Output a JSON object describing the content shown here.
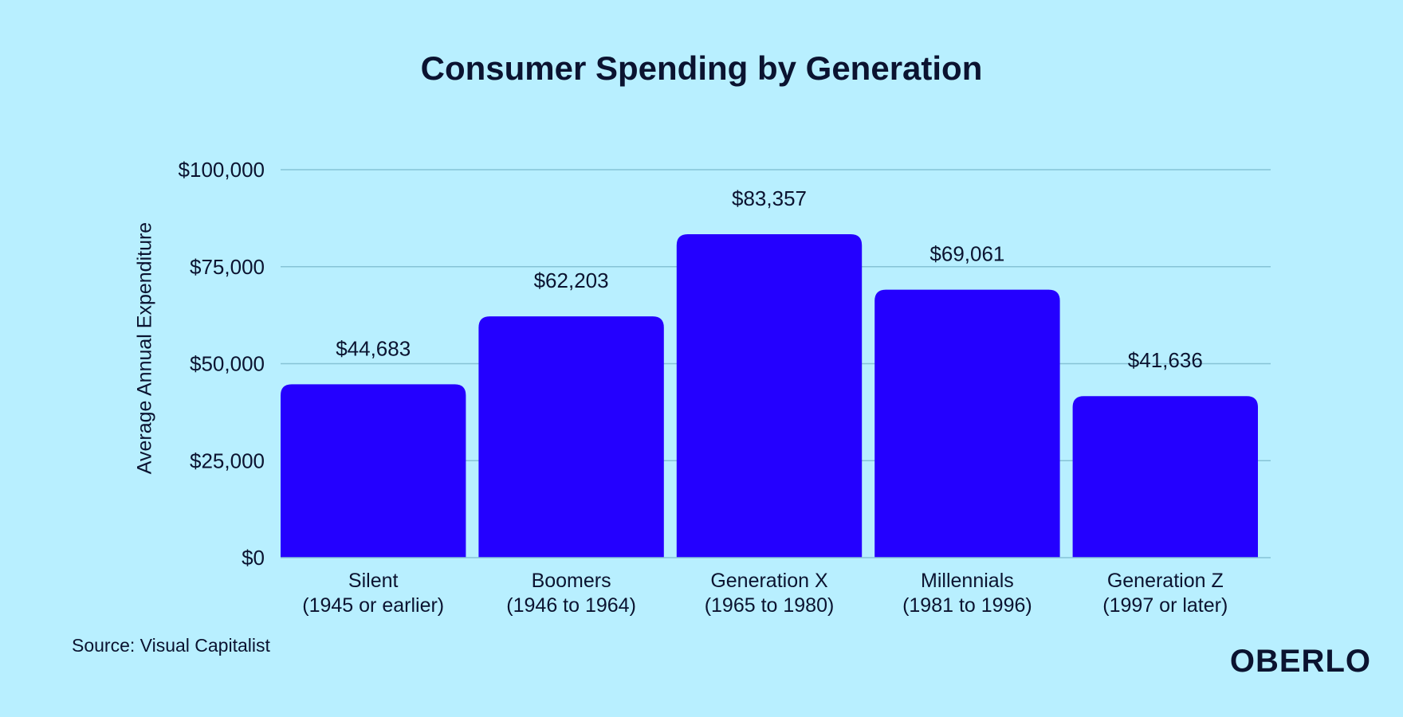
{
  "chart_data": {
    "type": "bar",
    "title": "Consumer Spending by Generation",
    "xlabel": "",
    "ylabel": "Average Annual Expenditure",
    "ylim": [
      0,
      100000
    ],
    "yticks": [
      0,
      25000,
      50000,
      75000,
      100000
    ],
    "ytick_labels": [
      "$0",
      "$25,000",
      "$50,000",
      "$75,000",
      "$100,000"
    ],
    "grid": true,
    "categories": [
      "Silent\n(1945 or earlier)",
      "Boomers\n(1946 to 1964)",
      "Generation X\n(1965 to 1980)",
      "Millennials\n(1981 to 1996)",
      "Generation Z\n(1997 or later)"
    ],
    "values": [
      44683,
      62203,
      83357,
      69061,
      41636
    ],
    "value_labels": [
      "$44,683",
      "$62,203",
      "$83,357",
      "$69,061",
      "$41,636"
    ],
    "colors": {
      "bar": "#2400ff",
      "grid": "#86c3d6",
      "text": "#0b1330",
      "background": "#b8efff"
    }
  },
  "footer": {
    "source": "Source: Visual Capitalist",
    "logo": "OBERLO"
  }
}
